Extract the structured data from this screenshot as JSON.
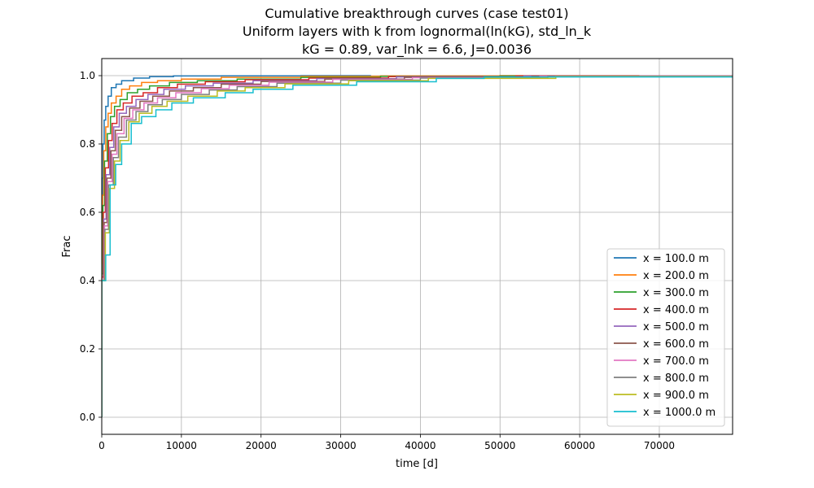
{
  "chart_data": {
    "type": "line",
    "title": [
      "Cumulative breakthrough curves (case test01)",
      "Uniform layers with k from lognormal(ln(kG), std_ln_k",
      "kG = 0.89, var_lnk = 6.6, J=0.0036"
    ],
    "xlabel": "time [d]",
    "ylabel": "Frac",
    "xlim": [
      0,
      79200
    ],
    "ylim": [
      -0.05,
      1.05
    ],
    "xticks": [
      0,
      10000,
      20000,
      30000,
      40000,
      50000,
      60000,
      70000
    ],
    "yticks": [
      0.0,
      0.2,
      0.4,
      0.6,
      0.8,
      1.0
    ],
    "xtick_labels": [
      "0",
      "10000",
      "20000",
      "30000",
      "40000",
      "50000",
      "60000",
      "70000"
    ],
    "ytick_labels": [
      "0.0",
      "0.2",
      "0.4",
      "0.6",
      "0.8",
      "1.0"
    ],
    "grid": true,
    "legend_position": "lower-right",
    "series": [
      {
        "name": "x = 100.0 m",
        "color": "#1f77b4",
        "x": [
          0,
          80,
          150,
          300,
          500,
          800,
          1200,
          1800,
          2500,
          4000,
          6000,
          9000,
          15000,
          25000,
          33800
        ],
        "y": [
          0.0,
          0.48,
          0.7,
          0.8,
          0.87,
          0.91,
          0.94,
          0.965,
          0.975,
          0.985,
          0.993,
          0.997,
          0.999,
          0.9995,
          1.0
        ]
      },
      {
        "name": "x = 200.0 m",
        "color": "#ff7f0e",
        "x": [
          0,
          100,
          250,
          500,
          800,
          1200,
          1800,
          2500,
          3500,
          5000,
          7000,
          10000,
          15000,
          25000,
          35000,
          50000,
          67500
        ],
        "y": [
          0.0,
          0.45,
          0.65,
          0.78,
          0.85,
          0.89,
          0.92,
          0.94,
          0.96,
          0.97,
          0.98,
          0.985,
          0.99,
          0.995,
          0.998,
          0.999,
          1.0
        ]
      },
      {
        "name": "x = 300.0 m",
        "color": "#2ca02c",
        "x": [
          0,
          150,
          350,
          700,
          1100,
          1600,
          2300,
          3200,
          4500,
          6000,
          8500,
          12000,
          17000,
          25000,
          35000,
          50000,
          79200
        ],
        "y": [
          0.0,
          0.42,
          0.62,
          0.75,
          0.83,
          0.88,
          0.91,
          0.93,
          0.95,
          0.96,
          0.97,
          0.98,
          0.985,
          0.99,
          0.995,
          0.998,
          0.999
        ]
      },
      {
        "name": "x = 400.0 m",
        "color": "#d62728",
        "x": [
          0,
          200,
          450,
          850,
          1300,
          1900,
          2700,
          3800,
          5200,
          7000,
          9500,
          13000,
          18000,
          26000,
          36000,
          52000,
          79200
        ],
        "y": [
          0.0,
          0.41,
          0.6,
          0.73,
          0.81,
          0.86,
          0.9,
          0.92,
          0.94,
          0.95,
          0.965,
          0.975,
          0.982,
          0.988,
          0.993,
          0.997,
          0.999
        ]
      },
      {
        "name": "x = 500.0 m",
        "color": "#9467bd",
        "x": [
          0,
          250,
          550,
          1000,
          1500,
          2200,
          3100,
          4300,
          5800,
          7800,
          10500,
          14000,
          19000,
          27000,
          37000,
          53000,
          79200
        ],
        "y": [
          0.0,
          0.4,
          0.58,
          0.71,
          0.79,
          0.85,
          0.89,
          0.91,
          0.93,
          0.945,
          0.96,
          0.97,
          0.978,
          0.985,
          0.991,
          0.996,
          0.999
        ]
      },
      {
        "name": "x = 600.0 m",
        "color": "#8c564b",
        "x": [
          0,
          300,
          650,
          1150,
          1700,
          2500,
          3500,
          4800,
          6400,
          8500,
          11500,
          15000,
          20000,
          28000,
          38000,
          54000,
          79200
        ],
        "y": [
          0.0,
          0.4,
          0.57,
          0.7,
          0.78,
          0.84,
          0.88,
          0.905,
          0.925,
          0.94,
          0.955,
          0.965,
          0.975,
          0.983,
          0.99,
          0.995,
          0.998
        ]
      },
      {
        "name": "x = 700.0 m",
        "color": "#e377c2",
        "x": [
          0,
          350,
          750,
          1300,
          1900,
          2800,
          3900,
          5300,
          7000,
          9300,
          12500,
          16000,
          21000,
          29000,
          39000,
          55000,
          79200
        ],
        "y": [
          0.0,
          0.4,
          0.56,
          0.69,
          0.77,
          0.83,
          0.875,
          0.9,
          0.92,
          0.935,
          0.95,
          0.962,
          0.972,
          0.981,
          0.989,
          0.994,
          0.998
        ]
      },
      {
        "name": "x = 800.0 m",
        "color": "#7f7f7f",
        "x": [
          0,
          400,
          850,
          1450,
          2100,
          3100,
          4300,
          5800,
          7600,
          10000,
          13500,
          17000,
          22000,
          30000,
          40000,
          56000,
          79200
        ],
        "y": [
          0.0,
          0.4,
          0.55,
          0.68,
          0.76,
          0.82,
          0.87,
          0.895,
          0.915,
          0.93,
          0.945,
          0.958,
          0.968,
          0.978,
          0.987,
          0.993,
          0.998
        ]
      },
      {
        "name": "x = 900.0 m",
        "color": "#bcbd22",
        "x": [
          0,
          450,
          950,
          1600,
          2300,
          3400,
          4700,
          6300,
          8200,
          10800,
          14500,
          18000,
          23000,
          31000,
          41000,
          57000,
          79200
        ],
        "y": [
          0.0,
          0.4,
          0.54,
          0.67,
          0.75,
          0.81,
          0.865,
          0.89,
          0.91,
          0.925,
          0.94,
          0.955,
          0.965,
          0.976,
          0.985,
          0.992,
          0.997
        ]
      },
      {
        "name": "x = 1000.0 m",
        "color": "#17becf",
        "x": [
          0,
          500,
          1050,
          1750,
          2500,
          3700,
          5000,
          6800,
          8800,
          11500,
          15500,
          19000,
          24000,
          32000,
          42000,
          48000,
          79200
        ],
        "y": [
          0.0,
          0.4,
          0.475,
          0.68,
          0.74,
          0.8,
          0.86,
          0.88,
          0.9,
          0.92,
          0.935,
          0.95,
          0.96,
          0.972,
          0.982,
          0.992,
          0.996
        ]
      }
    ]
  }
}
